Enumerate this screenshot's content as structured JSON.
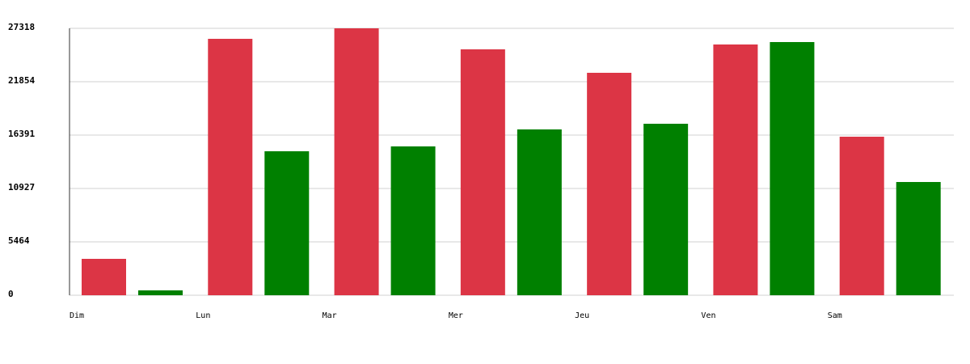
{
  "chart_data": {
    "type": "bar",
    "categories": [
      "Dim",
      "Lun",
      "Mar",
      "Mer",
      "Jeu",
      "Ven",
      "Sam"
    ],
    "series": [
      {
        "color": "#dc3545",
        "values": [
          3725,
          26242,
          27318,
          25166,
          22765,
          25663,
          16225
        ]
      },
      {
        "color": "#008000",
        "values": [
          500,
          14735,
          15232,
          16970,
          17550,
          25911,
          11589
        ]
      }
    ],
    "ylim": [
      0,
      27318
    ],
    "yticks": [
      0,
      5464,
      10927,
      16391,
      21854,
      27318
    ],
    "grid": true
  }
}
